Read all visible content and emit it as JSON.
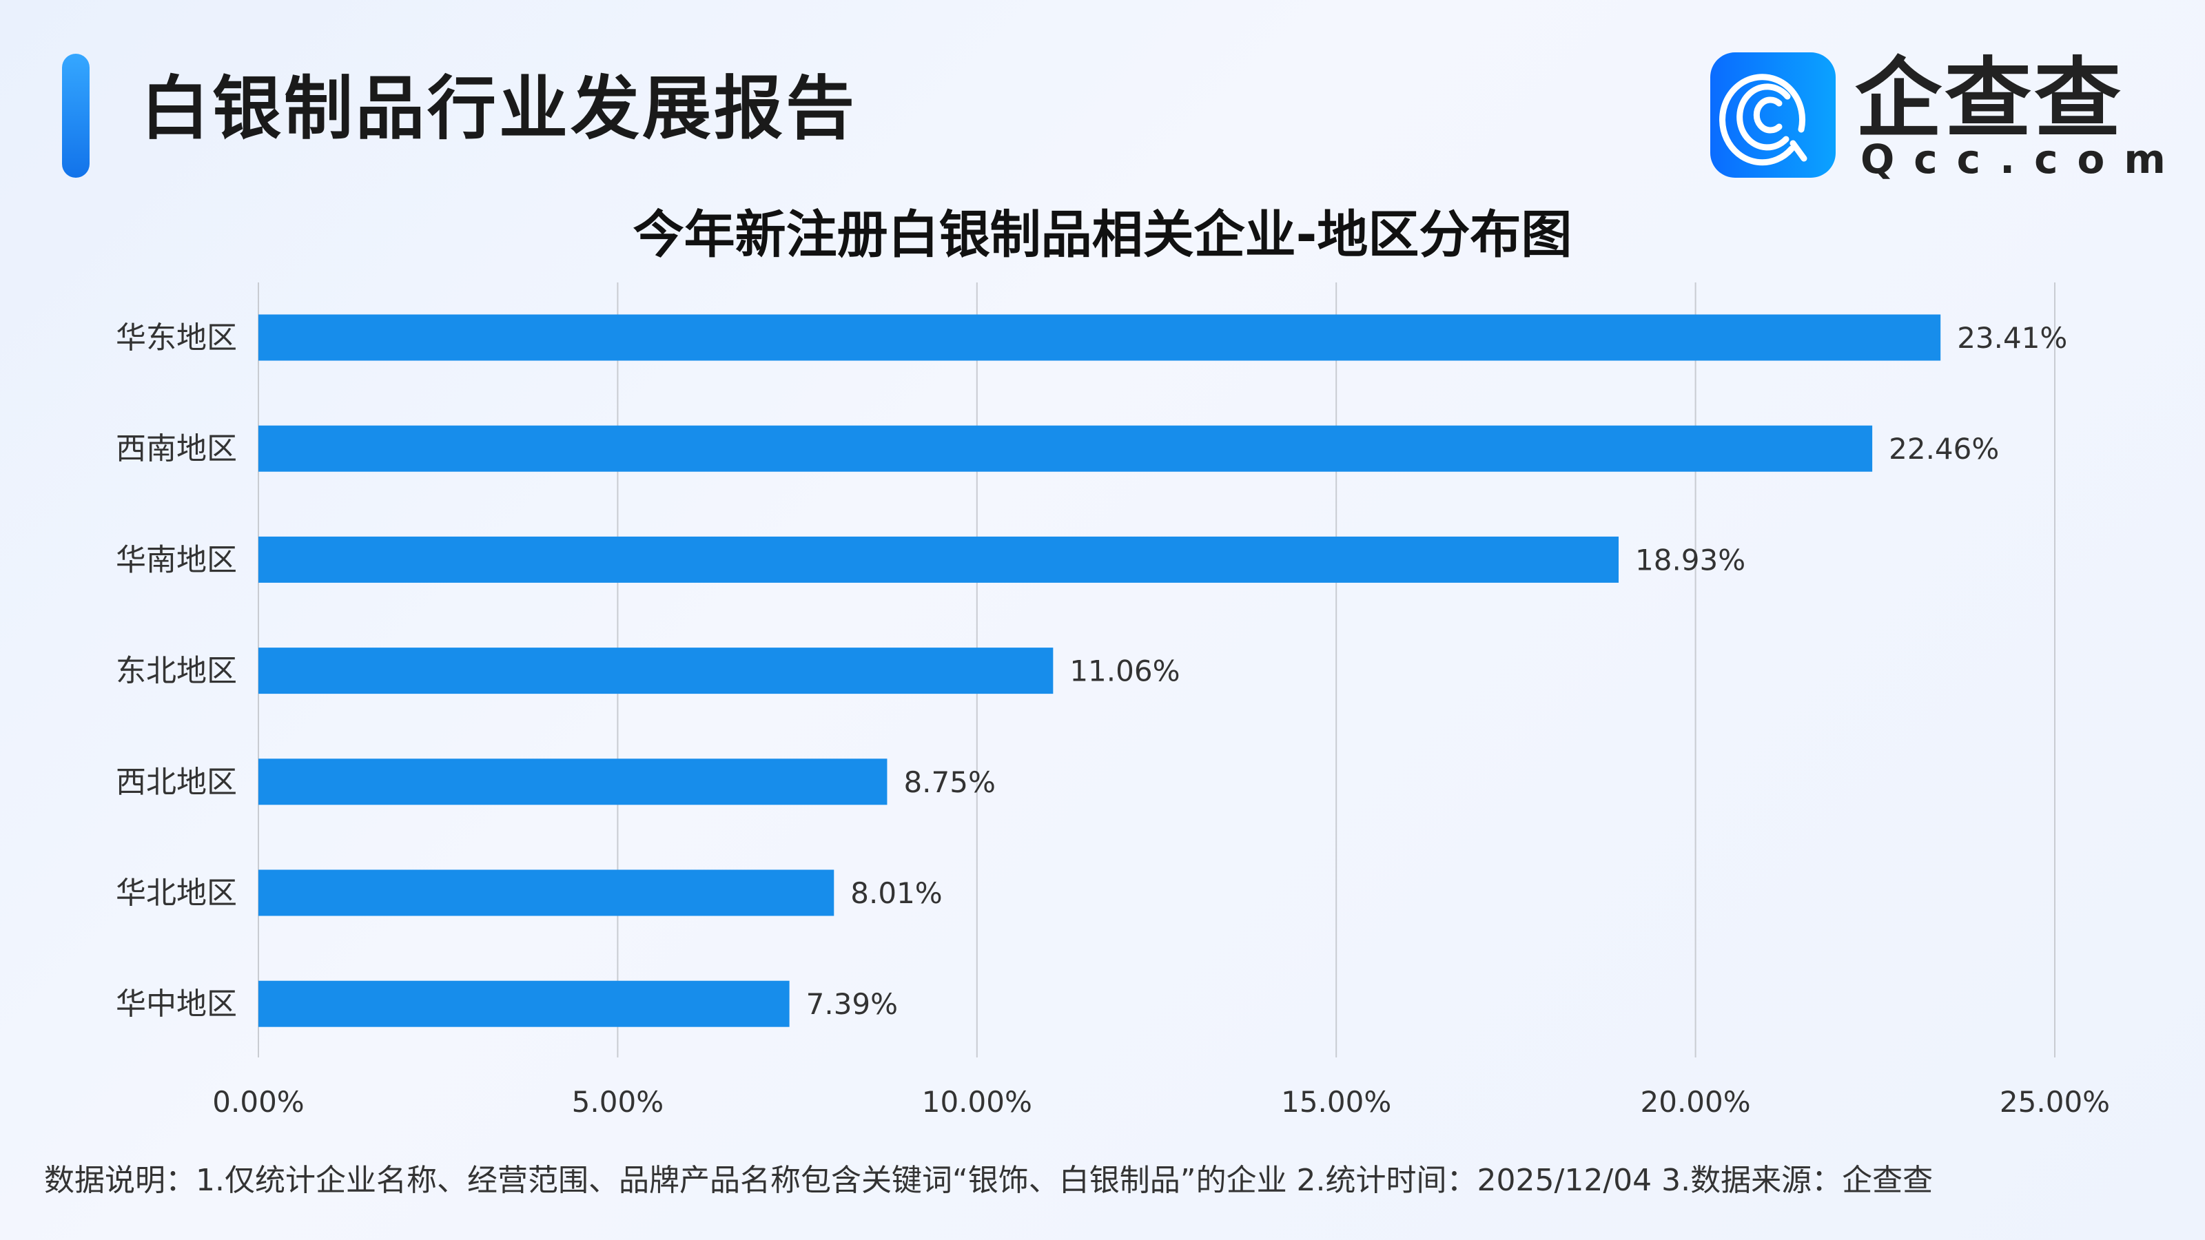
{
  "header": {
    "title": "白银制品行业发展报告"
  },
  "logo": {
    "cn": "企查查",
    "en": "Qcc.com"
  },
  "chart_data": {
    "type": "bar",
    "orientation": "horizontal",
    "title": "今年新注册白银制品相关企业-地区分布图",
    "categories": [
      "华东地区",
      "西南地区",
      "华南地区",
      "东北地区",
      "西北地区",
      "华北地区",
      "华中地区"
    ],
    "values": [
      23.41,
      22.46,
      18.93,
      11.06,
      8.75,
      8.01,
      7.39
    ],
    "data_labels": [
      "23.41%",
      "22.46%",
      "18.93%",
      "11.06%",
      "8.75%",
      "8.01%",
      "7.39%"
    ],
    "xlim": [
      0,
      25
    ],
    "x_ticks": [
      "0.00%",
      "5.00%",
      "10.00%",
      "15.00%",
      "20.00%",
      "25.00%"
    ],
    "grid": "vertical",
    "bar_color": "#178deb"
  },
  "footer": {
    "note": "数据说明：1.仅统计企业名称、经营范围、品牌产品名称包含关键词“银饰、白银制品”的企业  2.统计时间：2025/12/04   3.数据来源：企查查"
  }
}
